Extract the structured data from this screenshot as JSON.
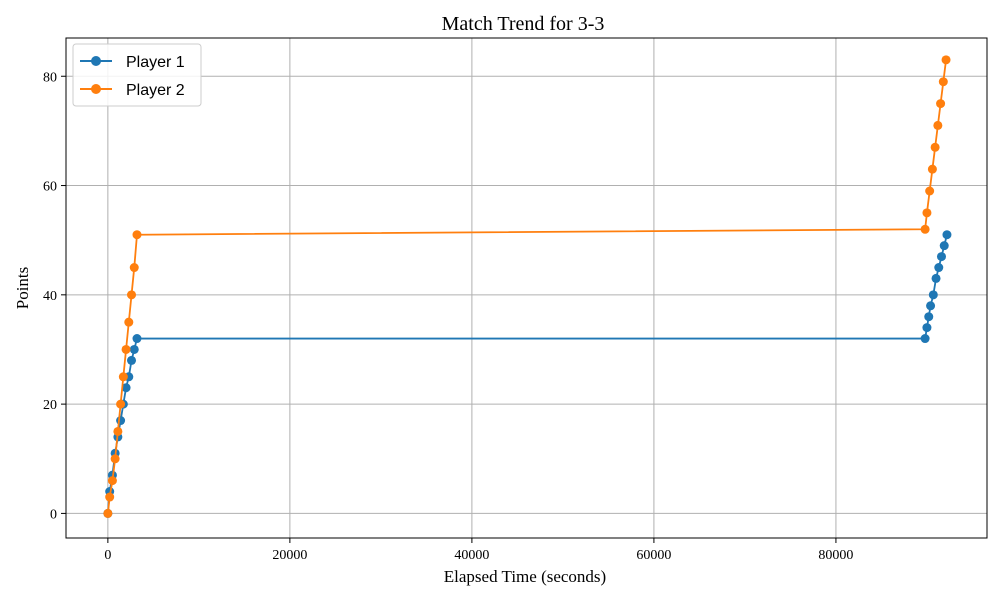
{
  "chart_data": {
    "type": "line",
    "title": "Match Trend for 3-3",
    "xlabel": "Elapsed Time (seconds)",
    "ylabel": "Points",
    "xlim": [
      -4600,
      96600
    ],
    "ylim": [
      -4.5,
      87
    ],
    "xticks": [
      0,
      20000,
      40000,
      60000,
      80000
    ],
    "xtick_labels": [
      "0",
      "20000",
      "40000",
      "60000",
      "80000"
    ],
    "yticks": [
      0,
      20,
      40,
      60,
      80
    ],
    "ytick_labels": [
      "0",
      "20",
      "40",
      "60",
      "80"
    ],
    "grid": true,
    "legend": "top-left",
    "series": [
      {
        "name": "Player 1",
        "color": "#1f77b4",
        "x": [
          0,
          200,
          500,
          800,
          1100,
          1400,
          1700,
          2000,
          2300,
          2600,
          2900,
          3200,
          89800,
          90000,
          90200,
          90400,
          90700,
          91000,
          91300,
          91600,
          91900,
          92200
        ],
        "y": [
          0,
          4,
          7,
          11,
          14,
          17,
          20,
          23,
          25,
          28,
          30,
          32,
          32,
          34,
          36,
          38,
          40,
          43,
          45,
          47,
          49,
          51
        ]
      },
      {
        "name": "Player 2",
        "color": "#ff7f0e",
        "x": [
          0,
          200,
          500,
          800,
          1100,
          1400,
          1700,
          2000,
          2300,
          2600,
          2900,
          3200,
          89800,
          90000,
          90300,
          90600,
          90900,
          91200,
          91500,
          91800,
          92100
        ],
        "y": [
          0,
          3,
          6,
          10,
          15,
          20,
          25,
          30,
          35,
          40,
          45,
          51,
          52,
          55,
          59,
          63,
          67,
          71,
          75,
          79,
          83
        ]
      }
    ]
  }
}
